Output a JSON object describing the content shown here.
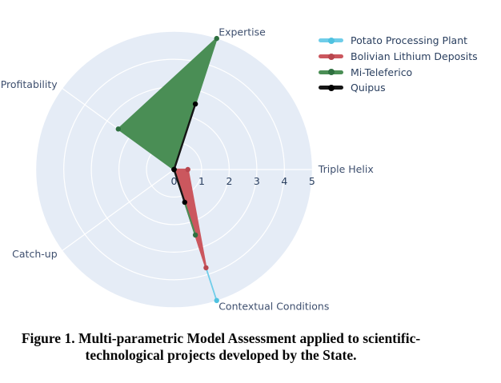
{
  "chart_data": {
    "type": "radar",
    "title": "",
    "categories": [
      "Triple Helix",
      "Expertise",
      "Profitability",
      "Catch-up",
      "Contextual Conditions"
    ],
    "angles_deg": [
      0,
      72,
      144,
      216,
      288
    ],
    "radial_ticks": [
      "0",
      "1",
      "2",
      "3",
      "4",
      "5"
    ],
    "rlim": [
      0,
      5
    ],
    "grid": "on",
    "legend_position": "top-right",
    "background_color": "#E5ECF6",
    "grid_color": "#ffffff",
    "label_color": "#3e4f6e",
    "tick_color": "#2a3f5f",
    "series": [
      {
        "name": "Potato Processing Plant",
        "color": "#6fcde9",
        "marker_color": "#4fc2e0",
        "line_width": 1.8,
        "values": [
          0,
          0,
          0,
          0,
          5
        ]
      },
      {
        "name": "Bolivian Lithium Deposits",
        "color": "#cb575e",
        "marker_color": "#b8474f",
        "line_width": 2.2,
        "values": [
          0.5,
          0,
          0,
          0,
          3.75
        ]
      },
      {
        "name": "Mi-Teleferico",
        "color": "#4a8e55",
        "marker_color": "#2f7040",
        "line_width": 2.2,
        "values": [
          0,
          5,
          2.5,
          0,
          2.5
        ]
      },
      {
        "name": "Quipus",
        "color": "#161616",
        "marker_color": "#000000",
        "line_width": 2.4,
        "values": [
          0,
          2.5,
          0,
          0,
          1.25
        ]
      }
    ]
  },
  "caption": {
    "line1": "Figure 1. Multi-parametric Model Assessment applied to scientific-",
    "line2": "technological projects developed by the State."
  }
}
